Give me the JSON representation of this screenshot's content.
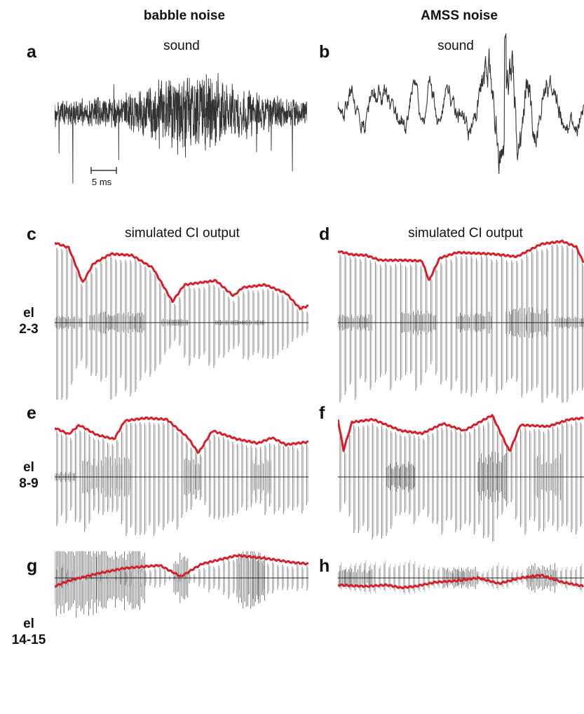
{
  "columns": [
    {
      "title": "babble noise"
    },
    {
      "title": "AMSS noise"
    }
  ],
  "panels": {
    "a": {
      "letter": "a",
      "label": "sound"
    },
    "b": {
      "letter": "b",
      "label": "sound"
    },
    "c": {
      "letter": "c",
      "label": "simulated CI output"
    },
    "d": {
      "letter": "d",
      "label": "simulated CI output"
    },
    "e": {
      "letter": "e"
    },
    "f": {
      "letter": "f"
    },
    "g": {
      "letter": "g"
    },
    "h": {
      "letter": "h"
    }
  },
  "electrodes": [
    {
      "line1": "el",
      "line2": "2-3"
    },
    {
      "line1": "el",
      "line2": "8-9"
    },
    {
      "line1": "el",
      "line2": "14-15"
    }
  ],
  "scale_bar": {
    "label": "5 ms"
  },
  "colors": {
    "envelope": "#d61f26",
    "trace": "#333333"
  }
}
